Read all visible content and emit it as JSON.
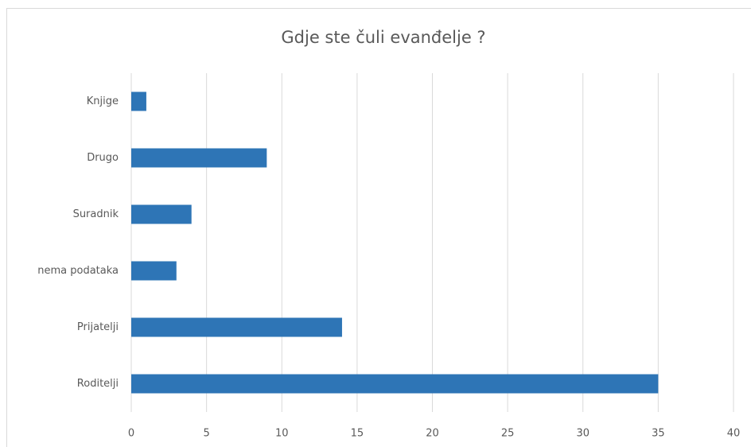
{
  "chart_data": {
    "type": "bar",
    "orientation": "horizontal",
    "title": "Gdje ste čuli evanđelje ?",
    "categories": [
      "Knjige",
      "Drugo",
      "Suradnik",
      "nema podataka",
      "Prijatelji",
      "Roditelji"
    ],
    "values": [
      1,
      9,
      4,
      3,
      14,
      35
    ],
    "color": "#2e75b6",
    "xlim": [
      0,
      40
    ],
    "xticks": [
      0,
      5,
      10,
      15,
      20,
      25,
      30,
      35,
      40
    ],
    "grid": true
  }
}
